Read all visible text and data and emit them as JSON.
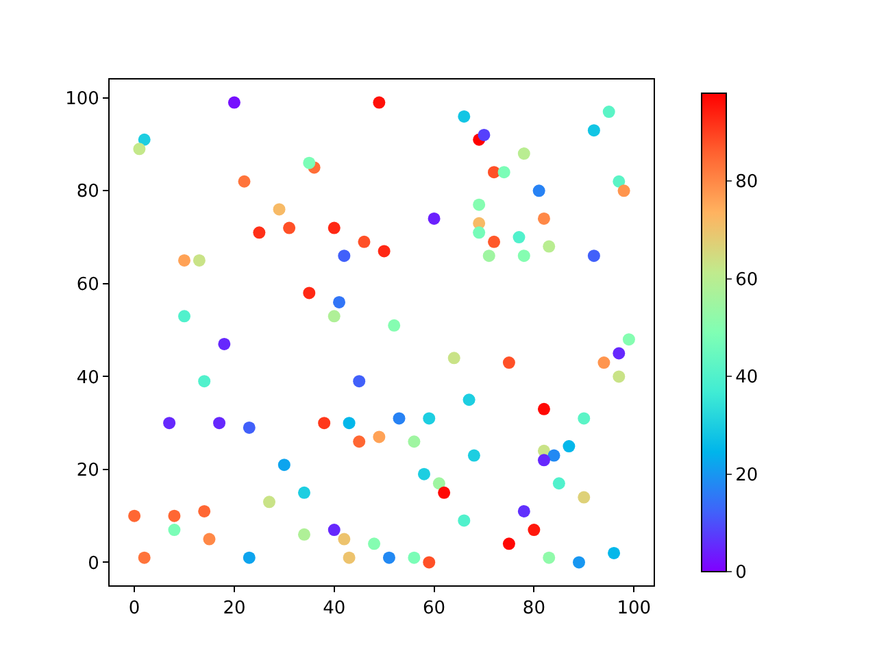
{
  "chart_data": {
    "type": "scatter",
    "marker": "circle",
    "grid": false,
    "legend": false,
    "x": [
      20,
      49,
      2,
      1,
      36,
      35,
      22,
      29,
      25,
      31,
      40,
      46,
      50,
      42,
      10,
      13,
      35,
      41,
      10,
      40,
      18,
      14,
      45,
      7,
      17,
      23,
      38,
      43,
      45,
      49,
      30,
      34,
      27,
      0,
      8,
      14,
      8,
      15,
      2,
      23,
      34,
      40,
      42,
      43,
      48,
      51,
      56,
      59,
      66,
      52,
      99,
      97,
      64,
      75,
      94,
      97,
      67,
      82,
      53,
      59,
      90,
      56,
      68,
      82,
      84,
      87,
      82,
      58,
      61,
      62,
      85,
      90,
      78,
      80,
      75,
      83,
      89,
      96,
      66,
      69,
      70,
      95,
      92,
      78,
      72,
      74,
      81,
      97,
      98,
      69,
      60,
      69,
      82,
      69,
      72,
      77,
      71,
      78,
      83,
      92
    ],
    "values": [
      99,
      99,
      91,
      89,
      85,
      86,
      82,
      76,
      71,
      72,
      72,
      69,
      67,
      66,
      65,
      65,
      58,
      56,
      53,
      53,
      47,
      39,
      39,
      30,
      30,
      29,
      30,
      30,
      26,
      27,
      21,
      15,
      13,
      10,
      10,
      11,
      7,
      5,
      1,
      1,
      6,
      7,
      5,
      1,
      4,
      1,
      1,
      0,
      9,
      51,
      48,
      45,
      44,
      43,
      43,
      40,
      35,
      33,
      31,
      31,
      31,
      26,
      23,
      24,
      23,
      25,
      22,
      19,
      17,
      15,
      17,
      14,
      11,
      7,
      4,
      1,
      0,
      2,
      96,
      91,
      92,
      97,
      93,
      88,
      84,
      84,
      80,
      82,
      80,
      77,
      74,
      73,
      74,
      71,
      69,
      70,
      66,
      66,
      68,
      66
    ],
    "cvalues": [
      2,
      96,
      30,
      62,
      84,
      48,
      83,
      72,
      92,
      88,
      93,
      88,
      93,
      12,
      76,
      63,
      93,
      15,
      40,
      58,
      5,
      40,
      12,
      5,
      5,
      12,
      91,
      25,
      85,
      76,
      22,
      30,
      63,
      85,
      85,
      85,
      48,
      80,
      83,
      22,
      58,
      5,
      70,
      70,
      50,
      18,
      48,
      88,
      40,
      50,
      50,
      5,
      63,
      88,
      78,
      63,
      30,
      97,
      17,
      30,
      42,
      55,
      30,
      63,
      18,
      25,
      5,
      30,
      55,
      97,
      40,
      67,
      6,
      95,
      97,
      52,
      20,
      25,
      28,
      98,
      8,
      42,
      28,
      60,
      88,
      48,
      17,
      42,
      78,
      50,
      4,
      72,
      80,
      47,
      87,
      40,
      55,
      50,
      60,
      12
    ],
    "xlim": [
      -4.95,
      103.95
    ],
    "ylim": [
      -4.95,
      103.95
    ],
    "xticks": [
      0,
      20,
      40,
      60,
      80,
      100
    ],
    "yticks": [
      0,
      20,
      40,
      60,
      80,
      100
    ],
    "clim": [
      0,
      98
    ],
    "cticks": [
      0,
      20,
      40,
      60,
      80
    ]
  }
}
